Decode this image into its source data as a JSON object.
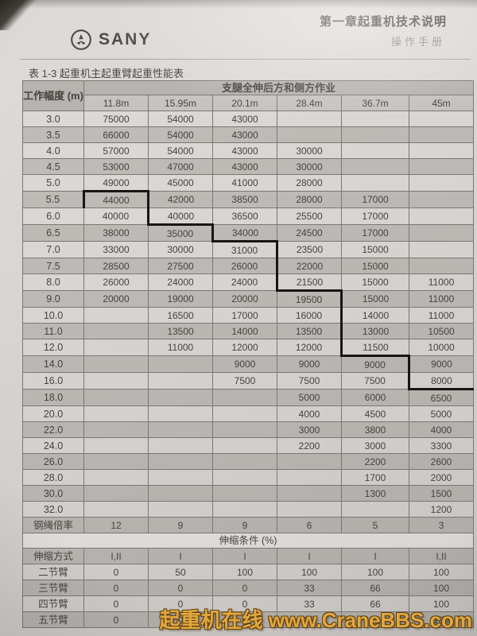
{
  "header": {
    "brand": "SANY",
    "chapter_title": "第一章起重机技术说明",
    "manual_label": "操作手册"
  },
  "caption": "表 1-3  起重机主起重臂起重性能表",
  "main_table": {
    "radius_header": "工作幅度 (m)",
    "span_header": "支腿全伸后方和侧方作业",
    "boom_lengths": [
      "11.8m",
      "15.95m",
      "20.1m",
      "28.4m",
      "36.7m",
      "45m"
    ],
    "rows": [
      {
        "radius": "3.0",
        "shaded": false,
        "values": [
          "75000",
          "54000",
          "43000",
          "",
          "",
          ""
        ]
      },
      {
        "radius": "3.5",
        "shaded": true,
        "values": [
          "66000",
          "54000",
          "43000",
          "",
          "",
          ""
        ]
      },
      {
        "radius": "4.0",
        "shaded": false,
        "values": [
          "57000",
          "54000",
          "43000",
          "30000",
          "",
          ""
        ]
      },
      {
        "radius": "4.5",
        "shaded": true,
        "values": [
          "53000",
          "47000",
          "43000",
          "30000",
          "",
          ""
        ]
      },
      {
        "radius": "5.0",
        "shaded": false,
        "values": [
          "49000",
          "45000",
          "41000",
          "28000",
          "",
          ""
        ]
      },
      {
        "radius": "5.5",
        "shaded": true,
        "values": [
          "44000",
          "42000",
          "38500",
          "28000",
          "17000",
          ""
        ]
      },
      {
        "radius": "6.0",
        "shaded": false,
        "values": [
          "40000",
          "40000",
          "36500",
          "25500",
          "17000",
          ""
        ]
      },
      {
        "radius": "6.5",
        "shaded": true,
        "values": [
          "38000",
          "35000",
          "34000",
          "24500",
          "17000",
          ""
        ]
      },
      {
        "radius": "7.0",
        "shaded": false,
        "values": [
          "33000",
          "30000",
          "31000",
          "23500",
          "15000",
          ""
        ]
      },
      {
        "radius": "7.5",
        "shaded": true,
        "values": [
          "28500",
          "27500",
          "26000",
          "22000",
          "15000",
          ""
        ]
      },
      {
        "radius": "8.0",
        "shaded": false,
        "values": [
          "26000",
          "24000",
          "24000",
          "21500",
          "15000",
          "11000"
        ]
      },
      {
        "radius": "9.0",
        "shaded": true,
        "values": [
          "20000",
          "19000",
          "20000",
          "19500",
          "15000",
          "11000"
        ]
      },
      {
        "radius": "10.0",
        "shaded": false,
        "values": [
          "",
          "16500",
          "17000",
          "16000",
          "14000",
          "11000"
        ]
      },
      {
        "radius": "11.0",
        "shaded": true,
        "values": [
          "",
          "13500",
          "14000",
          "13500",
          "13000",
          "10500"
        ]
      },
      {
        "radius": "12.0",
        "shaded": false,
        "values": [
          "",
          "11000",
          "12000",
          "12000",
          "11500",
          "10000"
        ]
      },
      {
        "radius": "14.0",
        "shaded": true,
        "values": [
          "",
          "",
          "9000",
          "9000",
          "9000",
          "9000"
        ]
      },
      {
        "radius": "16.0",
        "shaded": false,
        "values": [
          "",
          "",
          "7500",
          "7500",
          "7500",
          "8000"
        ]
      },
      {
        "radius": "18.0",
        "shaded": true,
        "values": [
          "",
          "",
          "",
          "5000",
          "6000",
          "6500"
        ]
      },
      {
        "radius": "20.0",
        "shaded": false,
        "values": [
          "",
          "",
          "",
          "4000",
          "4500",
          "5000"
        ]
      },
      {
        "radius": "22.0",
        "shaded": true,
        "values": [
          "",
          "",
          "",
          "3000",
          "3800",
          "4000"
        ]
      },
      {
        "radius": "24.0",
        "shaded": false,
        "values": [
          "",
          "",
          "",
          "2200",
          "3000",
          "3300"
        ]
      },
      {
        "radius": "26.0",
        "shaded": true,
        "values": [
          "",
          "",
          "",
          "",
          "2200",
          "2600"
        ]
      },
      {
        "radius": "28.0",
        "shaded": false,
        "values": [
          "",
          "",
          "",
          "",
          "1700",
          "2000"
        ]
      },
      {
        "radius": "30.0",
        "shaded": true,
        "values": [
          "",
          "",
          "",
          "",
          "1300",
          "1500"
        ]
      },
      {
        "radius": "32.0",
        "shaded": false,
        "values": [
          "",
          "",
          "",
          "",
          "",
          "1200"
        ]
      }
    ],
    "rope_ratio_row": {
      "label": "钢绳倍率",
      "shaded": true,
      "values": [
        "12",
        "9",
        "9",
        "6",
        "5",
        "3"
      ]
    },
    "telescope_section": {
      "title": "伸缩条件 (%)",
      "rows": [
        {
          "label": "伸缩方式",
          "shaded": true,
          "values": [
            "I,II",
            "I",
            "I",
            "I",
            "I",
            "I,II"
          ]
        },
        {
          "label": "二节臂",
          "shaded": false,
          "values": [
            "0",
            "50",
            "100",
            "100",
            "100",
            "100"
          ]
        },
        {
          "label": "三节臂",
          "shaded": true,
          "values": [
            "0",
            "0",
            "0",
            "33",
            "66",
            "100"
          ]
        },
        {
          "label": "四节臂",
          "shaded": false,
          "values": [
            "0",
            "0",
            "0",
            "33",
            "66",
            "100"
          ]
        },
        {
          "label": "五节臂",
          "shaded": true,
          "values": [
            "0",
            "0",
            "0",
            "33",
            "66",
            "100"
          ]
        }
      ]
    },
    "step_line_borders": [
      {
        "row": "5.5",
        "col": 0,
        "sides": "TLR"
      },
      {
        "row": "6.0",
        "col": 0,
        "sides": "R"
      },
      {
        "row": "6.5",
        "col": 1,
        "sides": "TR"
      },
      {
        "row": "7.0",
        "col": 2,
        "sides": "TR"
      },
      {
        "row": "7.5",
        "col": 2,
        "sides": "R"
      },
      {
        "row": "8.0",
        "col": 2,
        "sides": "R"
      },
      {
        "row": "9.0",
        "col": 3,
        "sides": "TR"
      },
      {
        "row": "10.0",
        "col": 3,
        "sides": "R"
      },
      {
        "row": "11.0",
        "col": 3,
        "sides": "R"
      },
      {
        "row": "12.0",
        "col": 3,
        "sides": "R"
      },
      {
        "row": "12.0",
        "col": 4,
        "sides": "B"
      },
      {
        "row": "14.0",
        "col": 4,
        "sides": "R"
      },
      {
        "row": "16.0",
        "col": 4,
        "sides": "R"
      },
      {
        "row": "16.0",
        "col": 5,
        "sides": "B"
      }
    ]
  },
  "watermark": "起重机在线 www.CraneBBS.com",
  "colors": {
    "watermark_orange": "#e2a73e",
    "step_line_black": "#171614",
    "shaded_row_gray": "#bdbab7",
    "page_gray": "#d6d3d0"
  }
}
